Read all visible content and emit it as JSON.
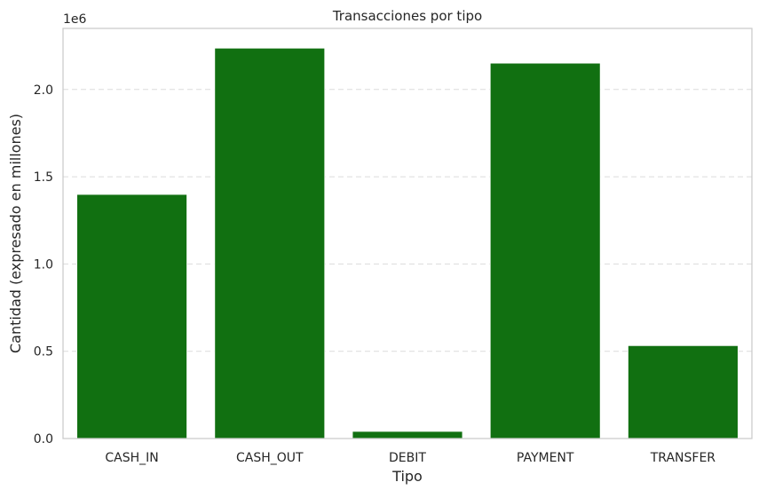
{
  "chart_data": {
    "type": "bar",
    "title": "Transacciones por tipo",
    "xlabel": "Tipo",
    "ylabel": "Cantidad (expresado en millones)",
    "offset_label": "1e6",
    "categories": [
      "CASH_IN",
      "CASH_OUT",
      "DEBIT",
      "PAYMENT",
      "TRANSFER"
    ],
    "values": [
      1399284,
      2237500,
      41432,
      2151495,
      532909
    ],
    "ylim": [
      0,
      2350000
    ],
    "yticks": [
      0,
      500000,
      1000000,
      1500000,
      2000000
    ],
    "ytick_labels": [
      "0.0",
      "0.5",
      "1.0",
      "1.5",
      "2.0"
    ],
    "bar_color": "#117011",
    "grid": "horizontal dashed",
    "legend": "none"
  }
}
